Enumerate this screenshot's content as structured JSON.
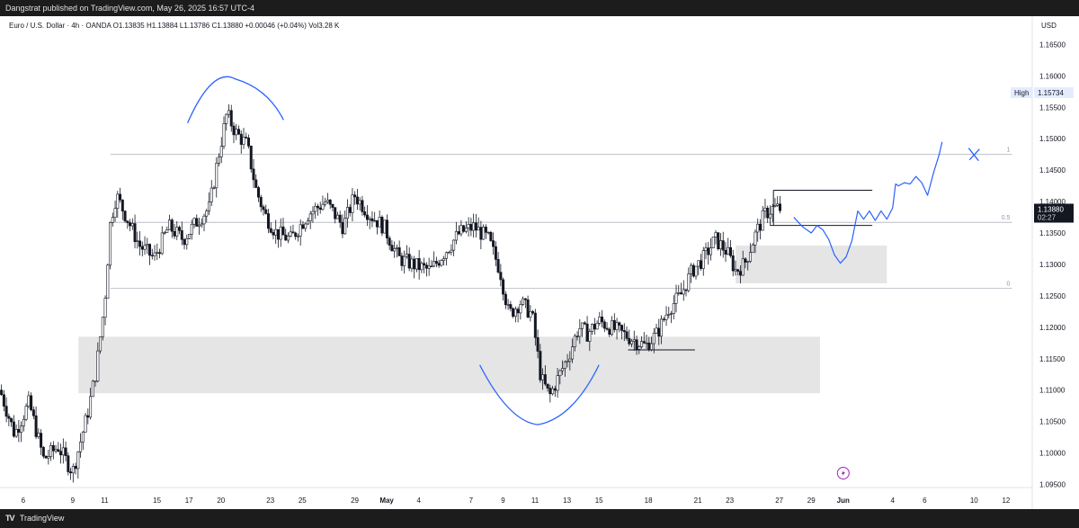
{
  "header": {
    "publisher": "Dangstrat published on TradingView.com, May 26, 2025 16:57 UTC-4"
  },
  "legend": {
    "text": "Euro / U.S. Dollar · 4h · OANDA   O1.13835  H1.13884  L1.13786  C1.13880  +0.00046 (+0.04%)   Vol3.28 K"
  },
  "axis": {
    "currency": "USD"
  },
  "footer": {
    "brand": "TradingView",
    "logo": "TV"
  },
  "colors": {
    "up": "#26a69a",
    "down": "#131722",
    "candle": "#131722",
    "drawing_blue": "#2962ff",
    "zone_fill": "#dcdcdc",
    "level_line": "#b2b5be",
    "label_bg": "#131722",
    "high_bg": "#e3ecff"
  },
  "chart_data": {
    "type": "candlestick",
    "symbol": "EURUSD",
    "timeframe": "4h",
    "ylim": [
      1.0945,
      1.1695
    ],
    "yticks": [
      1.095,
      1.1,
      1.105,
      1.11,
      1.115,
      1.12,
      1.125,
      1.13,
      1.135,
      1.14,
      1.145,
      1.15,
      1.155,
      1.16,
      1.165
    ],
    "ytick_labels": [
      "1.09500",
      "1.10000",
      "1.10500",
      "1.11000",
      "1.11500",
      "1.12000",
      "1.12500",
      "1.13000",
      "1.13500",
      "1.14000",
      "1.14500",
      "1.15000",
      "1.15500",
      "1.16000",
      "1.16500"
    ],
    "xticks": [
      {
        "label": "6",
        "t": 0.8
      },
      {
        "label": "9",
        "t": 2.5
      },
      {
        "label": "11",
        "t": 3.6
      },
      {
        "label": "15",
        "t": 5.4
      },
      {
        "label": "17",
        "t": 6.5
      },
      {
        "label": "20",
        "t": 7.6
      },
      {
        "label": "23",
        "t": 9.3
      },
      {
        "label": "25",
        "t": 10.4
      },
      {
        "label": "29",
        "t": 12.2
      },
      {
        "label": "May",
        "t": 13.3,
        "bold": true
      },
      {
        "label": "4",
        "t": 14.4
      },
      {
        "label": "7",
        "t": 16.2
      },
      {
        "label": "9",
        "t": 17.3
      },
      {
        "label": "11",
        "t": 18.4
      },
      {
        "label": "13",
        "t": 19.5
      },
      {
        "label": "15",
        "t": 20.6
      },
      {
        "label": "18",
        "t": 22.3
      },
      {
        "label": "21",
        "t": 24.0
      },
      {
        "label": "23",
        "t": 25.1
      },
      {
        "label": "27",
        "t": 26.8
      },
      {
        "label": "29",
        "t": 27.9
      },
      {
        "label": "Jun",
        "t": 29.0,
        "bold": true
      },
      {
        "label": "4",
        "t": 30.7
      },
      {
        "label": "6",
        "t": 31.8
      },
      {
        "label": "10",
        "t": 33.5
      },
      {
        "label": "12",
        "t": 34.6
      }
    ],
    "x_range": [
      0,
      35.5
    ],
    "ohlc_anchors": [
      [
        0.0,
        1.11
      ],
      [
        0.5,
        1.103
      ],
      [
        1.0,
        1.108
      ],
      [
        1.5,
        1.099
      ],
      [
        2.0,
        1.101
      ],
      [
        2.5,
        1.097
      ],
      [
        3.0,
        1.106
      ],
      [
        3.3,
        1.113
      ],
      [
        3.6,
        1.124
      ],
      [
        3.8,
        1.137
      ],
      [
        4.0,
        1.141
      ],
      [
        4.3,
        1.138
      ],
      [
        4.8,
        1.133
      ],
      [
        5.3,
        1.131
      ],
      [
        5.8,
        1.136
      ],
      [
        6.3,
        1.134
      ],
      [
        6.8,
        1.137
      ],
      [
        7.2,
        1.139
      ],
      [
        7.5,
        1.147
      ],
      [
        7.8,
        1.154
      ],
      [
        8.1,
        1.151
      ],
      [
        8.5,
        1.149
      ],
      [
        8.8,
        1.142
      ],
      [
        9.1,
        1.138
      ],
      [
        9.5,
        1.135
      ],
      [
        10.0,
        1.134
      ],
      [
        10.6,
        1.138
      ],
      [
        11.2,
        1.14
      ],
      [
        11.8,
        1.136
      ],
      [
        12.2,
        1.141
      ],
      [
        12.7,
        1.138
      ],
      [
        13.2,
        1.136
      ],
      [
        13.7,
        1.131
      ],
      [
        14.2,
        1.13
      ],
      [
        14.8,
        1.129
      ],
      [
        15.3,
        1.132
      ],
      [
        15.8,
        1.135
      ],
      [
        16.3,
        1.136
      ],
      [
        16.8,
        1.134
      ],
      [
        17.2,
        1.129
      ],
      [
        17.5,
        1.122
      ],
      [
        17.9,
        1.124
      ],
      [
        18.3,
        1.122
      ],
      [
        18.6,
        1.112
      ],
      [
        18.9,
        1.109
      ],
      [
        19.2,
        1.112
      ],
      [
        19.6,
        1.116
      ],
      [
        19.9,
        1.12
      ],
      [
        20.2,
        1.119
      ],
      [
        20.6,
        1.121
      ],
      [
        21.0,
        1.12
      ],
      [
        21.4,
        1.119
      ],
      [
        21.8,
        1.118
      ],
      [
        22.2,
        1.117
      ],
      [
        22.6,
        1.119
      ],
      [
        23.0,
        1.123
      ],
      [
        23.4,
        1.125
      ],
      [
        23.8,
        1.129
      ],
      [
        24.2,
        1.131
      ],
      [
        24.6,
        1.134
      ],
      [
        25.0,
        1.132
      ],
      [
        25.3,
        1.129
      ],
      [
        25.6,
        1.13
      ],
      [
        26.0,
        1.135
      ],
      [
        26.3,
        1.138
      ],
      [
        26.6,
        1.139
      ],
      [
        26.9,
        1.1388
      ]
    ],
    "zones": [
      {
        "x0": 2.7,
        "x1": 28.2,
        "top": 1.1185,
        "bottom": 1.1095
      },
      {
        "x0": 25.3,
        "x1": 30.5,
        "top": 1.133,
        "bottom": 1.127
      }
    ],
    "fib_levels": [
      {
        "label": "1",
        "value": 1.1475
      },
      {
        "label": "0.5",
        "value": 1.1367
      },
      {
        "label": "0",
        "value": 1.1262
      }
    ],
    "range_box": {
      "x0": 26.6,
      "x1": 30.0,
      "top": 1.1418,
      "bottom": 1.1362
    },
    "small_line": {
      "x0": 21.6,
      "x1": 23.9,
      "value": 1.1164
    },
    "last_price": {
      "value": 1.1388,
      "label": "1.13880",
      "countdown": "02:27"
    },
    "high_marker": {
      "label": "High",
      "value": 1.15734,
      "value_label": "1.15734"
    }
  }
}
